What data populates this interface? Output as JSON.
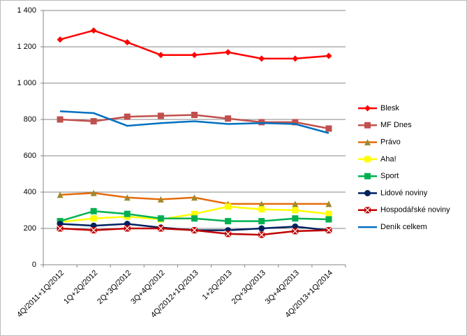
{
  "chart_data": {
    "type": "line",
    "categories": [
      "4Q/2011+1Q/2012",
      "1Q+2Q/2012",
      "2Q+3Q/2012",
      "3Q+4Q/2012",
      "4Q/2012+1Q/2013",
      "1+2Q/2013",
      "2Q+3Q/2013",
      "3Q+4Q/2013",
      "4Q/2013+1Q/2014"
    ],
    "series": [
      {
        "name": "Blesk",
        "color": "#ff0000",
        "marker": "diamond",
        "values": [
          1240,
          1290,
          1225,
          1155,
          1155,
          1170,
          1135,
          1135,
          1150
        ]
      },
      {
        "name": "MF Dnes",
        "color": "#c0504d",
        "marker": "square",
        "values": [
          800,
          790,
          815,
          820,
          825,
          805,
          785,
          785,
          750
        ]
      },
      {
        "name": "Právo",
        "color": "#e46c0a",
        "marker": "triangle",
        "values": [
          385,
          395,
          370,
          360,
          370,
          335,
          335,
          335,
          335
        ]
      },
      {
        "name": "Aha!",
        "color": "#ffff00",
        "marker": "square",
        "values": [
          235,
          255,
          265,
          250,
          280,
          320,
          305,
          300,
          280
        ]
      },
      {
        "name": "Sport",
        "color": "#00b050",
        "marker": "square",
        "values": [
          240,
          295,
          280,
          255,
          255,
          240,
          240,
          255,
          250
        ]
      },
      {
        "name": "Lidové noviny",
        "color": "#002060",
        "marker": "circle",
        "values": [
          225,
          215,
          225,
          205,
          190,
          190,
          200,
          210,
          190
        ]
      },
      {
        "name": "Hospodářské noviny",
        "color": "#c00000",
        "marker": "cross",
        "values": [
          200,
          190,
          200,
          200,
          190,
          170,
          165,
          185,
          190
        ]
      },
      {
        "name": "Deník celkem",
        "color": "#0070c0",
        "marker": "none",
        "values": [
          845,
          835,
          765,
          780,
          790,
          775,
          780,
          775,
          725
        ]
      }
    ],
    "ylim": [
      0,
      1400
    ],
    "yticks": [
      0,
      200,
      400,
      600,
      800,
      {
        "value": 1000,
        "label": "1 000"
      },
      {
        "value": 1200,
        "label": "1 200"
      },
      {
        "value": 1400,
        "label": "1 400"
      }
    ],
    "grid": true,
    "legend": "right"
  }
}
